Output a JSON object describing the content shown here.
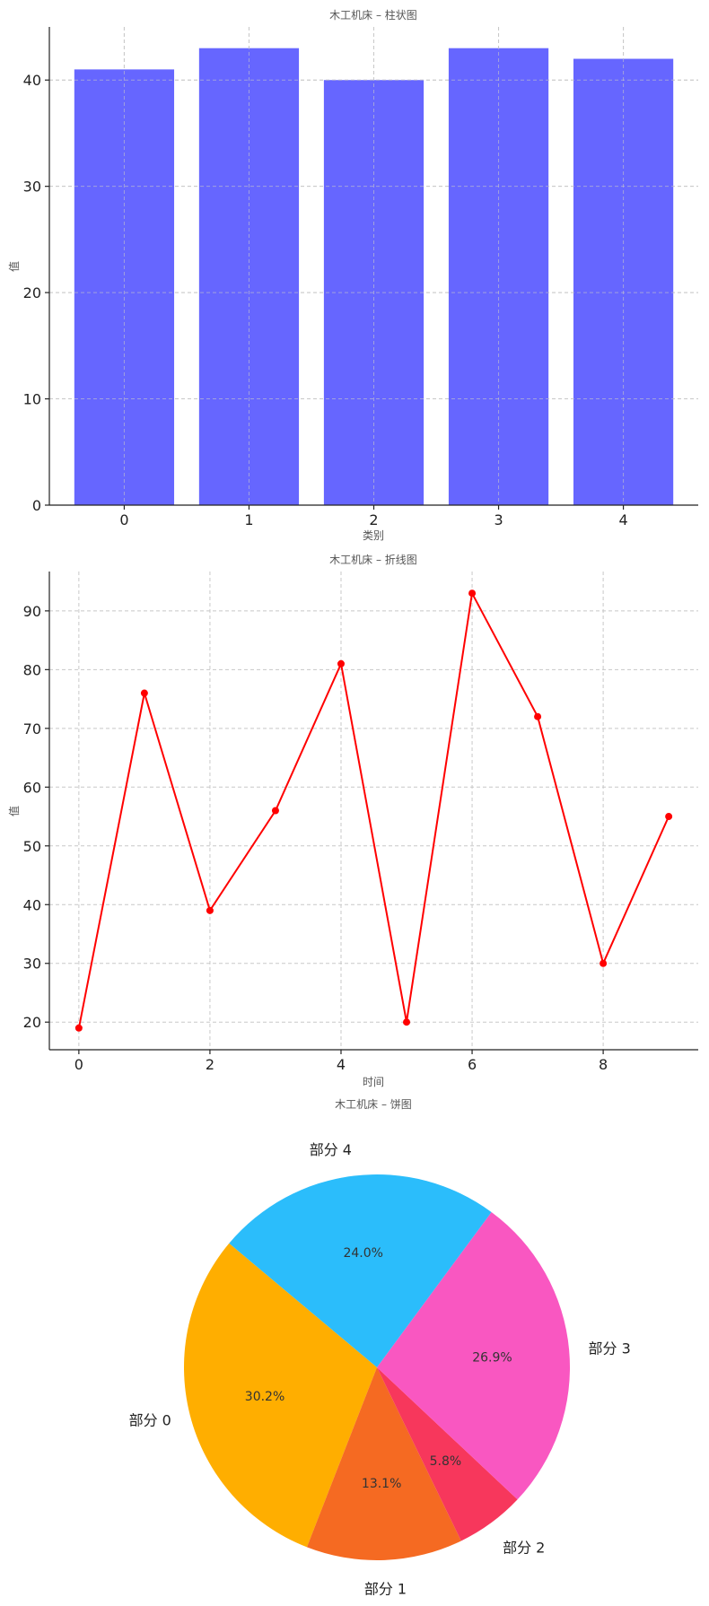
{
  "chart_data": [
    {
      "type": "bar",
      "title": "木工机床 – 柱状图",
      "xlabel": "类别",
      "ylabel": "值",
      "categories": [
        "0",
        "1",
        "2",
        "3",
        "4"
      ],
      "values": [
        41,
        43,
        40,
        43,
        42
      ],
      "ylim": [
        0,
        45
      ],
      "yticks": [
        0,
        10,
        20,
        30,
        40
      ],
      "grid": true,
      "color": "#6666ff"
    },
    {
      "type": "line",
      "title": "木工机床 – 折线图",
      "xlabel": "时间",
      "ylabel": "值",
      "x": [
        0,
        1,
        2,
        3,
        4,
        5,
        6,
        7,
        8,
        9
      ],
      "values": [
        19,
        76,
        39,
        56,
        81,
        20,
        93,
        72,
        30,
        55
      ],
      "xlim": [
        -0.45,
        9.45
      ],
      "ylim": [
        15.3,
        96.7
      ],
      "xticks": [
        0,
        2,
        4,
        6,
        8
      ],
      "yticks": [
        20,
        30,
        40,
        50,
        60,
        70,
        80,
        90
      ],
      "grid": true,
      "color": "#ff0000",
      "marker": "circle"
    },
    {
      "type": "pie",
      "title": "木工机床 – 饼图",
      "labels": [
        "部分 0",
        "部分 1",
        "部分 2",
        "部分 3",
        "部分 4"
      ],
      "values": [
        30.2,
        13.1,
        5.8,
        26.9,
        24.0
      ],
      "percent_labels": [
        "30.2%",
        "13.1%",
        "5.8%",
        "26.9%",
        "24.0%"
      ],
      "colors": [
        "#ffae00",
        "#f56a22",
        "#f7375c",
        "#f957c1",
        "#2bbdfb"
      ],
      "start_angle_deg": 140
    }
  ]
}
